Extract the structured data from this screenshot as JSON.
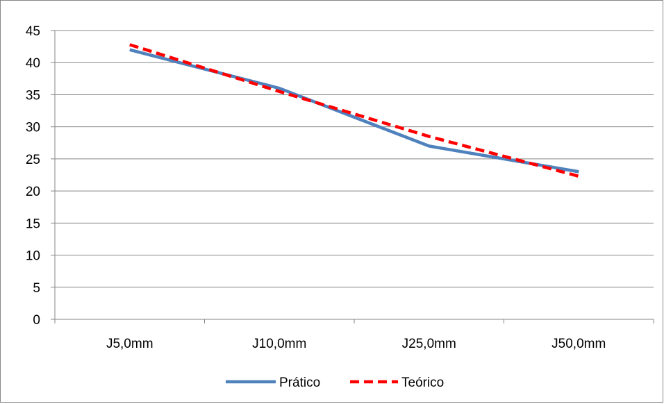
{
  "chart_data": {
    "type": "line",
    "categories": [
      "J5,0mm",
      "J10,0mm",
      "J25,0mm",
      "J50,0mm"
    ],
    "series": [
      {
        "name": "Prático",
        "values": [
          42,
          36,
          27,
          23
        ],
        "color": "#4f81bd",
        "style": "solid"
      },
      {
        "name": "Teórico",
        "values": [
          42.8,
          35.5,
          28.5,
          22.3
        ],
        "color": "#ff0000",
        "style": "dashed"
      }
    ],
    "ylim": [
      0,
      45
    ],
    "yticks": [
      "0",
      "5",
      "10",
      "15",
      "20",
      "25",
      "30",
      "35",
      "40",
      "45"
    ],
    "grid": true,
    "legend": "bottom"
  }
}
